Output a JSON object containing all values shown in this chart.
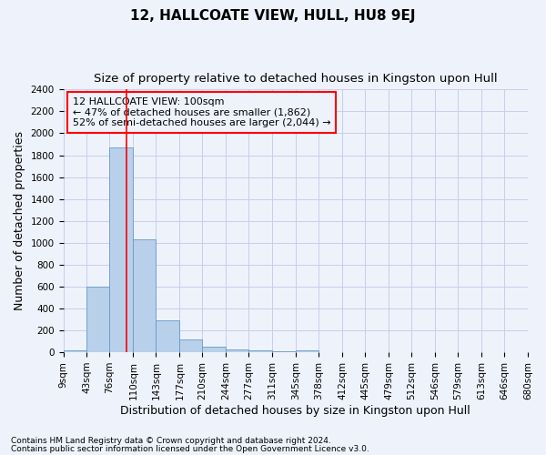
{
  "title": "12, HALLCOATE VIEW, HULL, HU8 9EJ",
  "subtitle": "Size of property relative to detached houses in Kingston upon Hull",
  "xlabel": "Distribution of detached houses by size in Kingston upon Hull",
  "ylabel": "Number of detached properties",
  "footnote1": "Contains HM Land Registry data © Crown copyright and database right 2024.",
  "footnote2": "Contains public sector information licensed under the Open Government Licence v3.0.",
  "annotation_line1": "12 HALLCOATE VIEW: 100sqm",
  "annotation_line2": "← 47% of detached houses are smaller (1,862)",
  "annotation_line3": "52% of semi-detached houses are larger (2,044) →",
  "bar_edges": [
    9,
    43,
    76,
    110,
    143,
    177,
    210,
    244,
    277,
    311,
    345,
    378,
    412,
    445,
    479,
    512,
    546,
    579,
    613,
    646,
    680
  ],
  "bar_heights": [
    20,
    600,
    1870,
    1030,
    290,
    115,
    48,
    27,
    20,
    13,
    20,
    0,
    0,
    0,
    0,
    0,
    0,
    0,
    0,
    0
  ],
  "bar_color": "#b8d0ea",
  "bar_edge_color": "#6699cc",
  "red_line_x": 100,
  "ylim": [
    0,
    2400
  ],
  "yticks": [
    0,
    200,
    400,
    600,
    800,
    1000,
    1200,
    1400,
    1600,
    1800,
    2000,
    2200,
    2400
  ],
  "background_color": "#eef2fb",
  "grid_color": "#c5cfe8",
  "title_fontsize": 11,
  "subtitle_fontsize": 9.5,
  "xlabel_fontsize": 9,
  "ylabel_fontsize": 9,
  "tick_fontsize": 7.5,
  "annotation_fontsize": 8,
  "footnote_fontsize": 6.5
}
